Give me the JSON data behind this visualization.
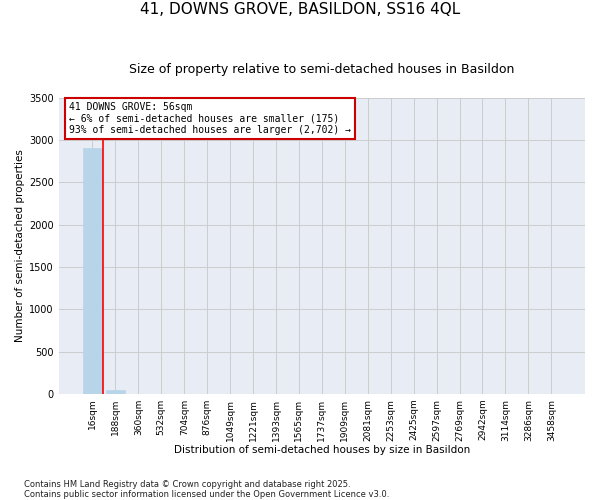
{
  "title": "41, DOWNS GROVE, BASILDON, SS16 4QL",
  "subtitle": "Size of property relative to semi-detached houses in Basildon",
  "xlabel": "Distribution of semi-detached houses by size in Basildon",
  "ylabel": "Number of semi-detached properties",
  "footer": "Contains HM Land Registry data © Crown copyright and database right 2025.\nContains public sector information licensed under the Open Government Licence v3.0.",
  "bin_labels": [
    "16sqm",
    "188sqm",
    "360sqm",
    "532sqm",
    "704sqm",
    "876sqm",
    "1049sqm",
    "1221sqm",
    "1393sqm",
    "1565sqm",
    "1737sqm",
    "1909sqm",
    "2081sqm",
    "2253sqm",
    "2425sqm",
    "2597sqm",
    "2769sqm",
    "2942sqm",
    "3114sqm",
    "3286sqm",
    "3458sqm"
  ],
  "bar_values": [
    2900,
    50,
    0,
    0,
    0,
    0,
    0,
    0,
    0,
    0,
    0,
    0,
    0,
    0,
    0,
    0,
    0,
    0,
    0,
    0,
    0
  ],
  "bar_color": "#b8d4e8",
  "property_line_x": 0.48,
  "annotation_text": "41 DOWNS GROVE: 56sqm\n← 6% of semi-detached houses are smaller (175)\n93% of semi-detached houses are larger (2,702) →",
  "annotation_box_edgecolor": "#cc0000",
  "ylim": [
    0,
    3500
  ],
  "yticks": [
    0,
    500,
    1000,
    1500,
    2000,
    2500,
    3000,
    3500
  ],
  "grid_color": "#cccccc",
  "bg_color": "#e8edf5",
  "title_fontsize": 11,
  "subtitle_fontsize": 9,
  "axis_label_fontsize": 7.5,
  "tick_fontsize": 6.5,
  "footer_fontsize": 6.0,
  "annotation_fontsize": 7.0
}
